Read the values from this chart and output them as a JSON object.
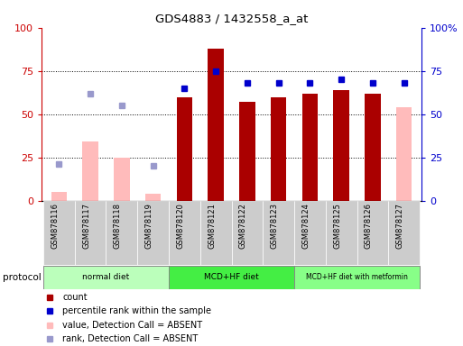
{
  "title": "GDS4883 / 1432558_a_at",
  "samples": [
    "GSM878116",
    "GSM878117",
    "GSM878118",
    "GSM878119",
    "GSM878120",
    "GSM878121",
    "GSM878122",
    "GSM878123",
    "GSM878124",
    "GSM878125",
    "GSM878126",
    "GSM878127"
  ],
  "count_values": [
    null,
    null,
    null,
    null,
    60,
    88,
    57,
    60,
    62,
    64,
    62,
    null
  ],
  "count_absent": [
    5,
    34,
    25,
    4,
    null,
    null,
    null,
    null,
    null,
    null,
    null,
    54
  ],
  "percentile_values": [
    null,
    null,
    null,
    null,
    65,
    75,
    68,
    68,
    68,
    70,
    68,
    68
  ],
  "percentile_absent": [
    21,
    62,
    55,
    20,
    null,
    null,
    null,
    null,
    null,
    null,
    null,
    null
  ],
  "protocols": [
    {
      "label": "normal diet",
      "start": 0,
      "end": 3,
      "color": "#bbffbb"
    },
    {
      "label": "MCD+HF diet",
      "start": 4,
      "end": 7,
      "color": "#44ee44"
    },
    {
      "label": "MCD+HF diet with metformin",
      "start": 8,
      "end": 11,
      "color": "#88ff88"
    }
  ],
  "ylim": [
    0,
    100
  ],
  "yticks": [
    0,
    25,
    50,
    75,
    100
  ],
  "left_axis_color": "#cc0000",
  "right_axis_color": "#0000cc",
  "bar_color_present": "#aa0000",
  "bar_color_absent": "#ffbbbb",
  "dot_color_present": "#0000cc",
  "dot_color_absent": "#9999cc",
  "xticklabel_bg": "#cccccc",
  "legend_items": [
    {
      "color": "#aa0000",
      "label": "count"
    },
    {
      "color": "#0000cc",
      "label": "percentile rank within the sample"
    },
    {
      "color": "#ffbbbb",
      "label": "value, Detection Call = ABSENT"
    },
    {
      "color": "#9999cc",
      "label": "rank, Detection Call = ABSENT"
    }
  ]
}
